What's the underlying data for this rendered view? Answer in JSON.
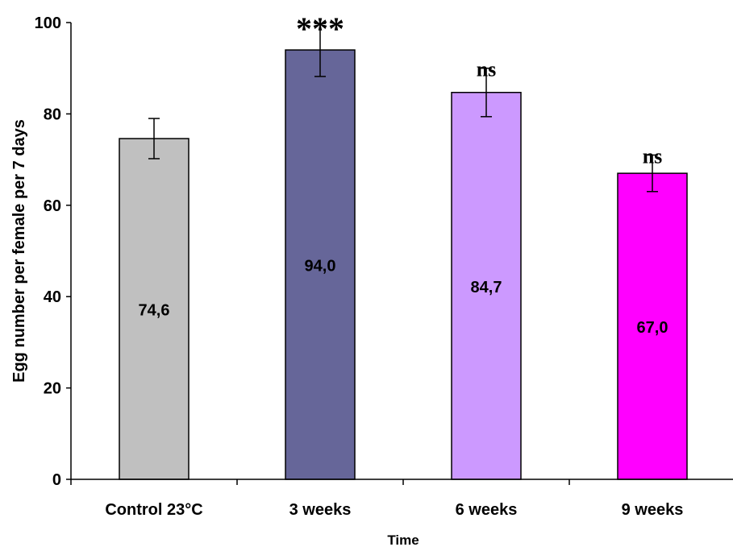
{
  "chart_data": {
    "type": "bar",
    "title": "",
    "xlabel": "Time",
    "ylabel": "Egg number per female per 7 days",
    "ylim": [
      0,
      100
    ],
    "yticks": [
      "0",
      "20",
      "40",
      "60",
      "80",
      "100"
    ],
    "categories": [
      "Control 23°C",
      "3 weeks",
      "6 weeks",
      "9 weeks"
    ],
    "values": [
      74.6,
      94.0,
      84.7,
      67.0
    ],
    "value_labels": [
      "74,6",
      "94,0",
      "84,7",
      "67,0"
    ],
    "errors": [
      4.4,
      5.8,
      5.3,
      4.0
    ],
    "significance": [
      "",
      "***",
      "ns",
      "ns"
    ],
    "bar_colors": [
      "#c0c0c0",
      "#666699",
      "#cc99ff",
      "#ff00ff"
    ],
    "grid": false,
    "legend": "none"
  }
}
